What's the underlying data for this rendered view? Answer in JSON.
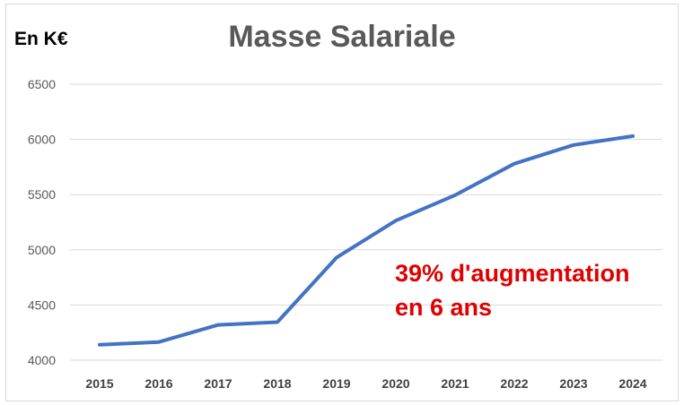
{
  "chart_data": {
    "type": "line",
    "title": "Masse Salariale",
    "unit_label": "En K€",
    "categories": [
      "2015",
      "2016",
      "2017",
      "2018",
      "2019",
      "2020",
      "2021",
      "2022",
      "2023",
      "2024"
    ],
    "series": [
      {
        "values": [
          4140,
          4165,
          4320,
          4345,
          4930,
          5265,
          5495,
          5780,
          5950,
          6030
        ],
        "color": "#4472c4"
      }
    ],
    "ylim": [
      4000,
      6500
    ],
    "yticks": [
      "4000",
      "4500",
      "5000",
      "5500",
      "6000",
      "6500"
    ],
    "grid": true,
    "legend": "none",
    "annotation": {
      "lines": [
        "39% d'augmentation",
        "en 6 ans"
      ],
      "color": "#e00000"
    }
  }
}
